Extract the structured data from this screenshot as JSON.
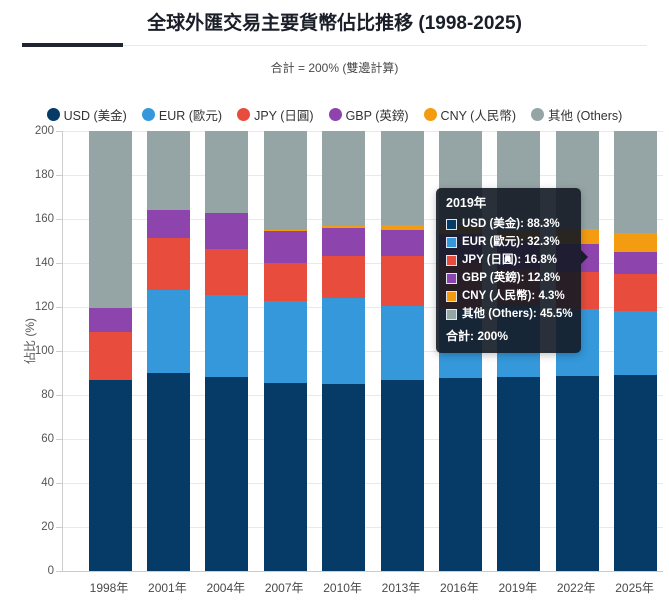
{
  "header": {
    "title": "全球外匯交易主要貨幣佔比推移 (1998-2025)",
    "subtitle": "合計 = 200% (雙邊計算)"
  },
  "ui": {
    "accent_color": "#20242e",
    "grid_color": "#e9e9e9",
    "axis_color": "#cccccc"
  },
  "chart_data": {
    "type": "bar",
    "stacked": true,
    "title": "全球外匯交易主要貨幣佔比推移 (1998-2025)",
    "subtitle": "合計 = 200% (雙邊計算)",
    "xlabel": "",
    "ylabel": "佔比 (%)",
    "ylim": [
      0,
      200
    ],
    "ytick_step": 20,
    "grid": true,
    "legend_position": "top",
    "categories": [
      "1998年",
      "2001年",
      "2004年",
      "2007年",
      "2010年",
      "2013年",
      "2016年",
      "2019年",
      "2022年",
      "2025年"
    ],
    "series": [
      {
        "key": "usd",
        "name": "USD (美金)",
        "color": "#063a67",
        "values": [
          86.8,
          89.9,
          88.0,
          85.6,
          84.9,
          87.0,
          87.6,
          88.3,
          88.5,
          89.2
        ]
      },
      {
        "key": "eur",
        "name": "EUR (歐元)",
        "color": "#3498db",
        "values": [
          0.0,
          37.9,
          37.4,
          37.0,
          39.1,
          33.4,
          31.4,
          32.3,
          30.5,
          28.9
        ]
      },
      {
        "key": "jpy",
        "name": "JPY (日圓)",
        "color": "#e74c3c",
        "values": [
          21.7,
          23.5,
          20.8,
          17.2,
          19.0,
          23.0,
          21.6,
          16.8,
          16.7,
          16.8
        ]
      },
      {
        "key": "gbp",
        "name": "GBP (英鎊)",
        "color": "#8e44ad",
        "values": [
          11.0,
          13.0,
          16.5,
          14.9,
          12.9,
          11.8,
          12.8,
          12.8,
          12.9,
          10.2
        ]
      },
      {
        "key": "cny",
        "name": "CNY (人民幣)",
        "color": "#f39c12",
        "values": [
          0.0,
          0.0,
          0.1,
          0.5,
          0.9,
          2.2,
          4.0,
          4.3,
          7.0,
          8.5
        ]
      },
      {
        "key": "others",
        "name": "其他 (Others)",
        "color": "#95a5a6",
        "values": [
          80.5,
          35.7,
          37.2,
          44.8,
          43.2,
          42.6,
          42.6,
          45.5,
          44.4,
          46.4
        ]
      }
    ]
  },
  "tooltip": {
    "year": "2019年",
    "rows": [
      {
        "label": "USD (美金)",
        "value": "88.3%",
        "color": "#063a67"
      },
      {
        "label": "EUR (歐元)",
        "value": "32.3%",
        "color": "#3498db"
      },
      {
        "label": "JPY (日圓)",
        "value": "16.8%",
        "color": "#e74c3c"
      },
      {
        "label": "GBP (英鎊)",
        "value": "12.8%",
        "color": "#8e44ad"
      },
      {
        "label": "CNY (人民幣)",
        "value": "4.3%",
        "color": "#f39c12"
      },
      {
        "label": "其他 (Others)",
        "value": "45.5%",
        "color": "#95a5a6"
      }
    ],
    "total": "合計: 200%"
  }
}
